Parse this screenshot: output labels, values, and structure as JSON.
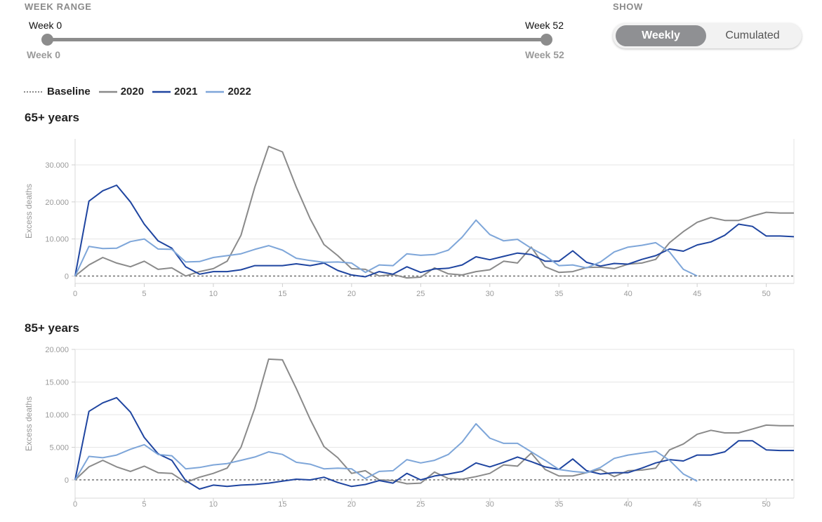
{
  "controls": {
    "week_range_title": "WEEK RANGE",
    "show_title": "SHOW",
    "slider": {
      "min_label": "Week 0",
      "max_label": "Week 52",
      "start_label": "Week 0",
      "end_label": "Week 52",
      "start": 0,
      "end": 52
    },
    "toggle": {
      "options": [
        "Weekly",
        "Cumulated"
      ],
      "selected": "Weekly"
    }
  },
  "legend": [
    {
      "label": "Baseline",
      "color": "#666666",
      "style": "dashed"
    },
    {
      "label": "2020",
      "color": "#8a8a8a",
      "style": "solid"
    },
    {
      "label": "2021",
      "color": "#1f45a0",
      "style": "solid"
    },
    {
      "label": "2022",
      "color": "#7ea6d9",
      "style": "solid"
    }
  ],
  "chart_data": [
    {
      "type": "line",
      "title": "65+ years",
      "ylabel": "Excess deaths",
      "xlabel": "",
      "xlim": [
        0,
        52
      ],
      "ylim": [
        -2000,
        37000
      ],
      "xticks": [
        0,
        5,
        10,
        15,
        20,
        25,
        30,
        35,
        40,
        45,
        50
      ],
      "yticks": [
        0,
        10000,
        20000,
        30000
      ],
      "ytick_labels": [
        "0",
        "10.000",
        "20.000",
        "30.000"
      ],
      "baseline": 0,
      "series": [
        {
          "name": "2020",
          "color": "#8a8a8a",
          "x": [
            0,
            1,
            2,
            3,
            4,
            5,
            6,
            7,
            8,
            9,
            10,
            11,
            12,
            13,
            14,
            15,
            16,
            17,
            18,
            19,
            20,
            21,
            22,
            23,
            24,
            25,
            26,
            27,
            28,
            29,
            30,
            31,
            32,
            33,
            34,
            35,
            36,
            37,
            38,
            39,
            40,
            41,
            42,
            43,
            44,
            45,
            46,
            47,
            48,
            49,
            50,
            51,
            52
          ],
          "values": [
            0,
            3000,
            5000,
            3500,
            2500,
            4000,
            1800,
            2200,
            0,
            1200,
            2000,
            4000,
            11000,
            24000,
            35000,
            33500,
            24000,
            15500,
            8500,
            5500,
            2000,
            1800,
            0,
            400,
            -500,
            -300,
            2200,
            600,
            300,
            1200,
            1700,
            4000,
            3500,
            7800,
            2500,
            1000,
            1200,
            2300,
            2400,
            2000,
            3200,
            3500,
            4500,
            9000,
            12000,
            14500,
            15800,
            15000,
            15000,
            16200,
            17200,
            17000,
            17000
          ]
        },
        {
          "name": "2021",
          "color": "#1f45a0",
          "x": [
            0,
            1,
            2,
            3,
            4,
            5,
            6,
            7,
            8,
            9,
            10,
            11,
            12,
            13,
            14,
            15,
            16,
            17,
            18,
            19,
            20,
            21,
            22,
            23,
            24,
            25,
            26,
            27,
            28,
            29,
            30,
            31,
            32,
            33,
            34,
            35,
            36,
            37,
            38,
            39,
            40,
            41,
            42,
            43,
            44,
            45,
            46,
            47,
            48,
            49,
            50,
            51,
            52
          ],
          "values": [
            0,
            20200,
            23000,
            24500,
            20000,
            14000,
            9500,
            7500,
            2500,
            500,
            1200,
            1200,
            1700,
            2800,
            2800,
            2800,
            3300,
            2800,
            3500,
            1500,
            300,
            -200,
            1200,
            500,
            2500,
            1000,
            1900,
            2100,
            3000,
            5200,
            4400,
            5300,
            6200,
            5800,
            4000,
            4000,
            6800,
            3700,
            2700,
            3400,
            3200,
            4500,
            5500,
            7300,
            6700,
            8400,
            9200,
            11000,
            14000,
            13400,
            10800,
            10800,
            10600
          ]
        },
        {
          "name": "2022",
          "color": "#7ea6d9",
          "x": [
            0,
            1,
            2,
            3,
            4,
            5,
            6,
            7,
            8,
            9,
            10,
            11,
            12,
            13,
            14,
            15,
            16,
            17,
            18,
            19,
            20,
            21,
            22,
            23,
            24,
            25,
            26,
            27,
            28,
            29,
            30,
            31,
            32,
            33,
            34,
            35,
            36,
            37,
            38,
            39,
            40,
            41,
            42,
            43,
            44,
            45
          ],
          "values": [
            0,
            8000,
            7400,
            7500,
            9300,
            10000,
            7300,
            7200,
            3800,
            3900,
            5000,
            5500,
            6000,
            7200,
            8200,
            7000,
            4800,
            4200,
            3700,
            3800,
            3500,
            1000,
            3000,
            2800,
            6000,
            5600,
            5800,
            7000,
            10500,
            15100,
            11200,
            9500,
            9900,
            7500,
            5500,
            2800,
            3000,
            2200,
            3800,
            6500,
            7800,
            8300,
            9000,
            6500,
            1800,
            0
          ]
        }
      ]
    },
    {
      "type": "line",
      "title": "85+ years",
      "ylabel": "Excess deaths",
      "xlabel": "",
      "xlim": [
        0,
        52
      ],
      "ylim": [
        -2800,
        20000
      ],
      "xticks": [
        0,
        5,
        10,
        15,
        20,
        25,
        30,
        35,
        40,
        45,
        50
      ],
      "yticks": [
        0,
        5000,
        10000,
        15000,
        20000
      ],
      "ytick_labels": [
        "0",
        "5.000",
        "10.000",
        "15.000",
        "20.000"
      ],
      "baseline": 0,
      "series": [
        {
          "name": "2020",
          "color": "#8a8a8a",
          "x": [
            0,
            1,
            2,
            3,
            4,
            5,
            6,
            7,
            8,
            9,
            10,
            11,
            12,
            13,
            14,
            15,
            16,
            17,
            18,
            19,
            20,
            21,
            22,
            23,
            24,
            25,
            26,
            27,
            28,
            29,
            30,
            31,
            32,
            33,
            34,
            35,
            36,
            37,
            38,
            39,
            40,
            41,
            42,
            43,
            44,
            45,
            46,
            47,
            48,
            49,
            50,
            51,
            52
          ],
          "values": [
            0,
            2000,
            3000,
            2000,
            1300,
            2100,
            1100,
            1000,
            -400,
            400,
            1000,
            1800,
            5000,
            11000,
            18500,
            18400,
            14000,
            9300,
            5100,
            3400,
            1000,
            1400,
            0,
            -100,
            -600,
            -500,
            1200,
            200,
            100,
            500,
            1000,
            2300,
            2100,
            4100,
            1600,
            600,
            600,
            1100,
            1600,
            500,
            1400,
            1500,
            1800,
            4600,
            5500,
            7000,
            7600,
            7200,
            7200,
            7800,
            8400,
            8300,
            8300
          ]
        },
        {
          "name": "2021",
          "color": "#1f45a0",
          "x": [
            0,
            1,
            2,
            3,
            4,
            5,
            6,
            7,
            8,
            9,
            10,
            11,
            12,
            13,
            14,
            15,
            16,
            17,
            18,
            19,
            20,
            21,
            22,
            23,
            24,
            25,
            26,
            27,
            28,
            29,
            30,
            31,
            32,
            33,
            34,
            35,
            36,
            37,
            38,
            39,
            40,
            41,
            42,
            43,
            44,
            45,
            46,
            47,
            48,
            49,
            50,
            51,
            52
          ],
          "values": [
            0,
            10500,
            11800,
            12600,
            10400,
            6500,
            4000,
            3000,
            -100,
            -1400,
            -800,
            -1000,
            -800,
            -700,
            -500,
            -200,
            100,
            0,
            400,
            -400,
            -1000,
            -700,
            -100,
            -500,
            1000,
            0,
            600,
            900,
            1300,
            2600,
            2000,
            2700,
            3500,
            2800,
            2000,
            1600,
            3200,
            1400,
            900,
            1100,
            1100,
            1800,
            2600,
            3100,
            2900,
            3800,
            3800,
            4300,
            6000,
            6000,
            4600,
            4500,
            4500
          ]
        },
        {
          "name": "2022",
          "color": "#7ea6d9",
          "x": [
            0,
            1,
            2,
            3,
            4,
            5,
            6,
            7,
            8,
            9,
            10,
            11,
            12,
            13,
            14,
            15,
            16,
            17,
            18,
            19,
            20,
            21,
            22,
            23,
            24,
            25,
            26,
            27,
            28,
            29,
            30,
            31,
            32,
            33,
            34,
            35,
            36,
            37,
            38,
            39,
            40,
            41,
            42,
            43,
            44,
            45
          ],
          "values": [
            0,
            3600,
            3400,
            3800,
            4700,
            5400,
            3900,
            3700,
            1700,
            1900,
            2300,
            2500,
            3000,
            3500,
            4300,
            3900,
            2700,
            2400,
            1700,
            1800,
            1700,
            200,
            1300,
            1400,
            3100,
            2600,
            3000,
            3900,
            5800,
            8600,
            6400,
            5600,
            5600,
            4300,
            3000,
            1600,
            1300,
            1100,
            1900,
            3300,
            3800,
            4100,
            4400,
            3000,
            900,
            -200
          ]
        }
      ]
    }
  ]
}
